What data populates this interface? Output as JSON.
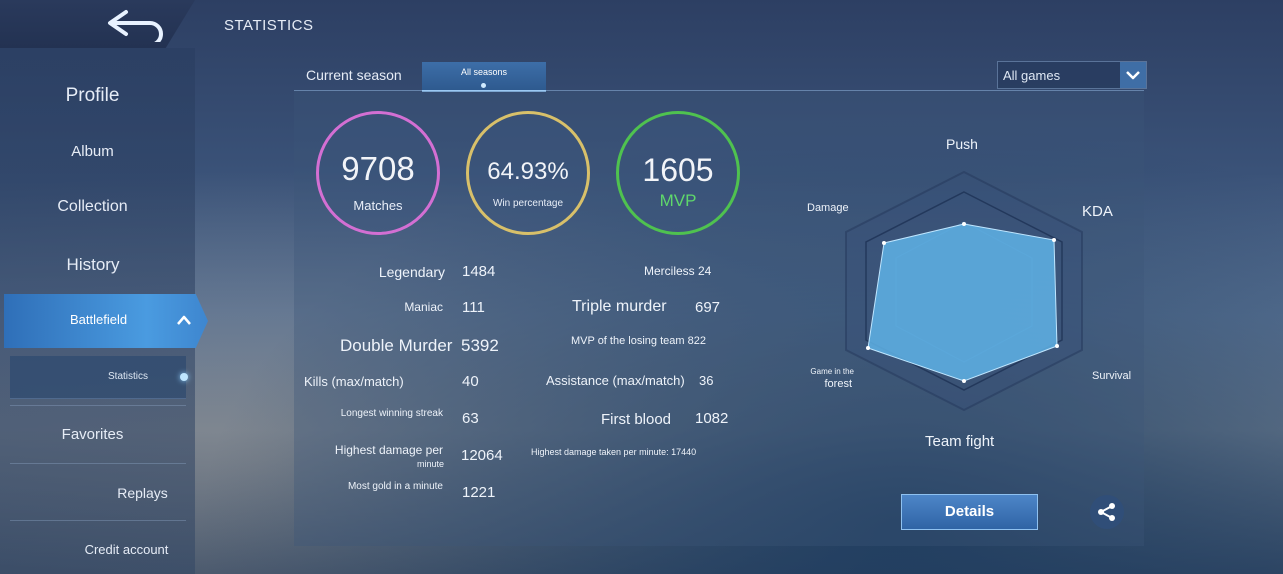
{
  "header": {
    "title": "STATISTICS"
  },
  "sidebar": {
    "items": [
      {
        "label": "Profile"
      },
      {
        "label": "Album"
      },
      {
        "label": "Collection"
      },
      {
        "label": "History"
      },
      {
        "label": "Battlefield"
      },
      {
        "label": "Statistics"
      },
      {
        "label": "Favorites"
      },
      {
        "label": "Replays"
      },
      {
        "label": "Credit account"
      }
    ]
  },
  "tabs": {
    "current": "Current season",
    "all": "All seasons"
  },
  "filter": {
    "selected": "All games"
  },
  "summary": {
    "matches": {
      "value": "9708",
      "label": "Matches"
    },
    "winrate": {
      "value": "64.93%",
      "label": "Win percentage"
    },
    "mvp": {
      "value": "1605",
      "label": "MVP"
    }
  },
  "stats": {
    "legendary_label": "Legendary",
    "legendary_value": "1484",
    "maniac_label": "Maniac",
    "maniac_value": "111",
    "double_label": "Double Murder",
    "double_value": "5392",
    "kills_label": "Kills (max/match)",
    "kills_value": "40",
    "streak_label": "Longest winning streak",
    "streak_value": "63",
    "damage_label_1": "Highest damage per",
    "damage_label_2": "minute",
    "damage_value": "12064",
    "gold_label": "Most gold in a minute",
    "gold_value": "1221",
    "merciless": "Merciless 24",
    "triple_label": "Triple murder",
    "triple_value": "697",
    "mvp_losing": "MVP of the losing team 822",
    "assist_label": "Assistance (max/match)",
    "assist_value": "36",
    "firstblood_label": "First blood",
    "firstblood_value": "1082",
    "damage_taken": "Highest damage taken per minute: 17440"
  },
  "radar": {
    "push": "Push",
    "kda": "KDA",
    "damage": "Damage",
    "survival": "Survival",
    "forest_1": "Game in the",
    "forest_2": "forest",
    "teamfight": "Team fight"
  },
  "actions": {
    "details": "Details"
  },
  "colors": {
    "accent": "#3f7fc4",
    "matches_ring": "#d36fd3",
    "winrate_ring": "#d8c06a",
    "mvp_ring": "#4fc24f",
    "mvp_text": "#5fd86b",
    "radar_fill": "#5fb3e6"
  }
}
